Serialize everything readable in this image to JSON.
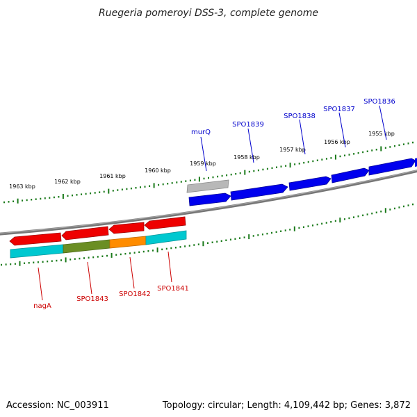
{
  "title": "Ruegeria pomeroyi DSS-3, complete genome",
  "footer": {
    "accession": "Accession: NC_003911",
    "summary": "Topology: circular; Length: 4,109,442 bp; Genes: 3,872"
  },
  "colors": {
    "backbone": "#808080",
    "tick": "#1a7a1a",
    "forward_gene": "#0000ee",
    "reverse_gene": "#ee0000",
    "grey_gene": "#b0b0b0",
    "cyan_gene": "#00c8d0",
    "olive_gene": "#6b8e23",
    "orange_gene": "#ff8c00",
    "blue_label": "#0000cc",
    "red_label": "#cc0000"
  },
  "kbp_labels": [
    "1963 kbp",
    "1962 kbp",
    "1961 kbp",
    "1960 kbp",
    "1959 kbp",
    "1958 kbp",
    "1957 kbp",
    "1956 kbp",
    "1955 kbp"
  ],
  "upper_gene_labels": [
    "murQ",
    "SPO1839",
    "SPO1838",
    "SPO1837",
    "SPO1836"
  ],
  "lower_gene_labels": [
    "nagA",
    "SPO1843",
    "SPO1842",
    "SPO1841"
  ]
}
